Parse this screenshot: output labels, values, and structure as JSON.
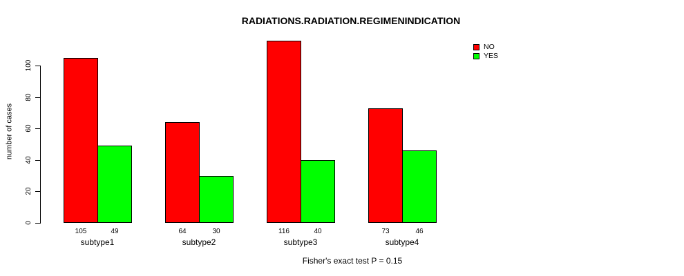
{
  "chart_data": {
    "type": "bar",
    "title": "RADIATIONS.RADIATION.REGIMENINDICATION",
    "ylabel": "number of cases",
    "xlabel": "",
    "caption": "Fisher's exact test P = 0.15",
    "categories": [
      "subtype1",
      "subtype2",
      "subtype3",
      "subtype4"
    ],
    "series": [
      {
        "name": "NO",
        "color": "#ff0000",
        "values": [
          105,
          64,
          116,
          73
        ]
      },
      {
        "name": "YES",
        "color": "#00ff00",
        "values": [
          49,
          30,
          40,
          46
        ]
      }
    ],
    "bar_value_labels": [
      [
        "105",
        "49"
      ],
      [
        "64",
        "30"
      ],
      [
        "116",
        "40"
      ],
      [
        "73",
        "46"
      ]
    ],
    "yticks": [
      0,
      20,
      40,
      60,
      80,
      100
    ],
    "ylim": [
      0,
      117
    ],
    "grid": false,
    "legend_position": "top-right",
    "legend": [
      "NO",
      "YES"
    ],
    "colors": {
      "no": "#ff0000",
      "yes": "#00ff00",
      "axis": "#000000",
      "background": "#ffffff"
    }
  }
}
